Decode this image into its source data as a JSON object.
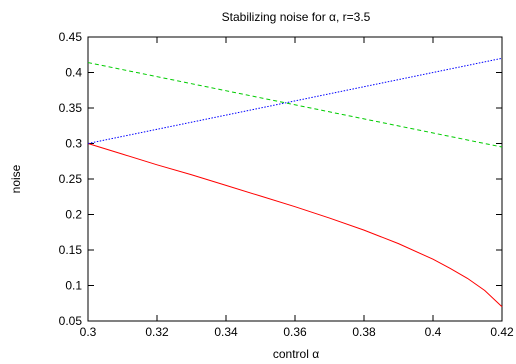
{
  "chart_data": {
    "type": "line",
    "title": "Stabilizing noise for α, r=3.5",
    "xlabel": "control α",
    "ylabel": "noise",
    "xlim": [
      0.3,
      0.42
    ],
    "ylim": [
      0.05,
      0.45
    ],
    "xticks": [
      0.3,
      0.32,
      0.34,
      0.36,
      0.38,
      0.4,
      0.42
    ],
    "xtick_labels": [
      "0.3",
      "0.32",
      "0.34",
      "0.36",
      "0.38",
      "0.4",
      "0.42"
    ],
    "yticks": [
      0.05,
      0.1,
      0.15,
      0.2,
      0.25,
      0.3,
      0.35,
      0.4,
      0.45
    ],
    "ytick_labels": [
      "0.05",
      "0.1",
      "0.15",
      "0.2",
      "0.25",
      "0.3",
      "0.35",
      "0.4",
      "0.45"
    ],
    "grid": false,
    "legend": "none",
    "series": [
      {
        "color": "#ff0000",
        "style": "solid",
        "x": [
          0.3,
          0.31,
          0.32,
          0.33,
          0.34,
          0.35,
          0.36,
          0.37,
          0.38,
          0.39,
          0.4,
          0.405,
          0.41,
          0.415,
          0.42
        ],
        "y": [
          0.3,
          0.285,
          0.27,
          0.256,
          0.241,
          0.226,
          0.211,
          0.195,
          0.178,
          0.159,
          0.137,
          0.124,
          0.11,
          0.093,
          0.07
        ]
      },
      {
        "color": "#00cc00",
        "style": "dashed",
        "x": [
          0.3,
          0.42
        ],
        "y": [
          0.414,
          0.295
        ]
      },
      {
        "color": "#0000ff",
        "style": "dotted",
        "x": [
          0.3,
          0.42
        ],
        "y": [
          0.3,
          0.42
        ]
      }
    ]
  }
}
